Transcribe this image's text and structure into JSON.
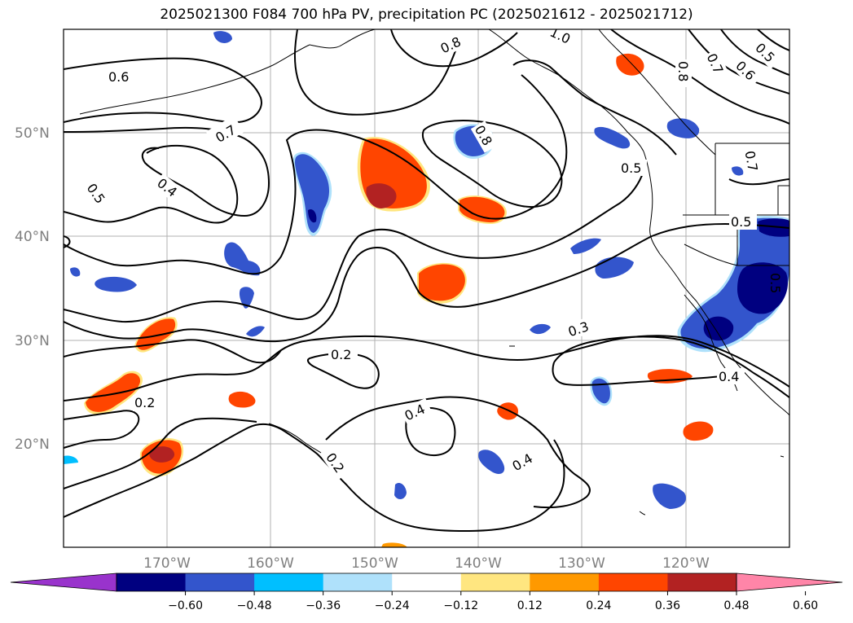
{
  "title": "2025021300 F084 700 hPa PV, precipitation PC (2025021612 - 2025021712)",
  "lat_labels": [
    "50°N",
    "40°N",
    "30°N",
    "20°N"
  ],
  "lon_labels": [
    "170°W",
    "160°W",
    "150°W",
    "140°W",
    "130°W",
    "120°W"
  ],
  "contour_labels": [
    "0.6",
    "0.7",
    "0.4",
    "0.5",
    "0.8",
    "1.0",
    "0.8",
    "0.8",
    "0.7",
    "0.6",
    "0.5",
    "0.3",
    "0.2",
    "0.2",
    "0.4",
    "0.4",
    "0.2",
    "0.4",
    "0.5",
    "0.5",
    "0.7",
    "0.5"
  ],
  "colorbar": {
    "colors": [
      "#9933cc",
      "#000080",
      "#3355cc",
      "#00bfff",
      "#afe1fb",
      "#ffffff",
      "#ffe680",
      "#ff9900",
      "#ff4500",
      "#b22222",
      "#ff85a8"
    ],
    "tick_labels": [
      "−0.60",
      "−0.48",
      "−0.36",
      "−0.24",
      "−0.12",
      "0.12",
      "0.24",
      "0.36",
      "0.48",
      "0.60"
    ]
  },
  "colors": {
    "grid": "#b0b0b0",
    "tick_text": "#7f7f7f"
  }
}
